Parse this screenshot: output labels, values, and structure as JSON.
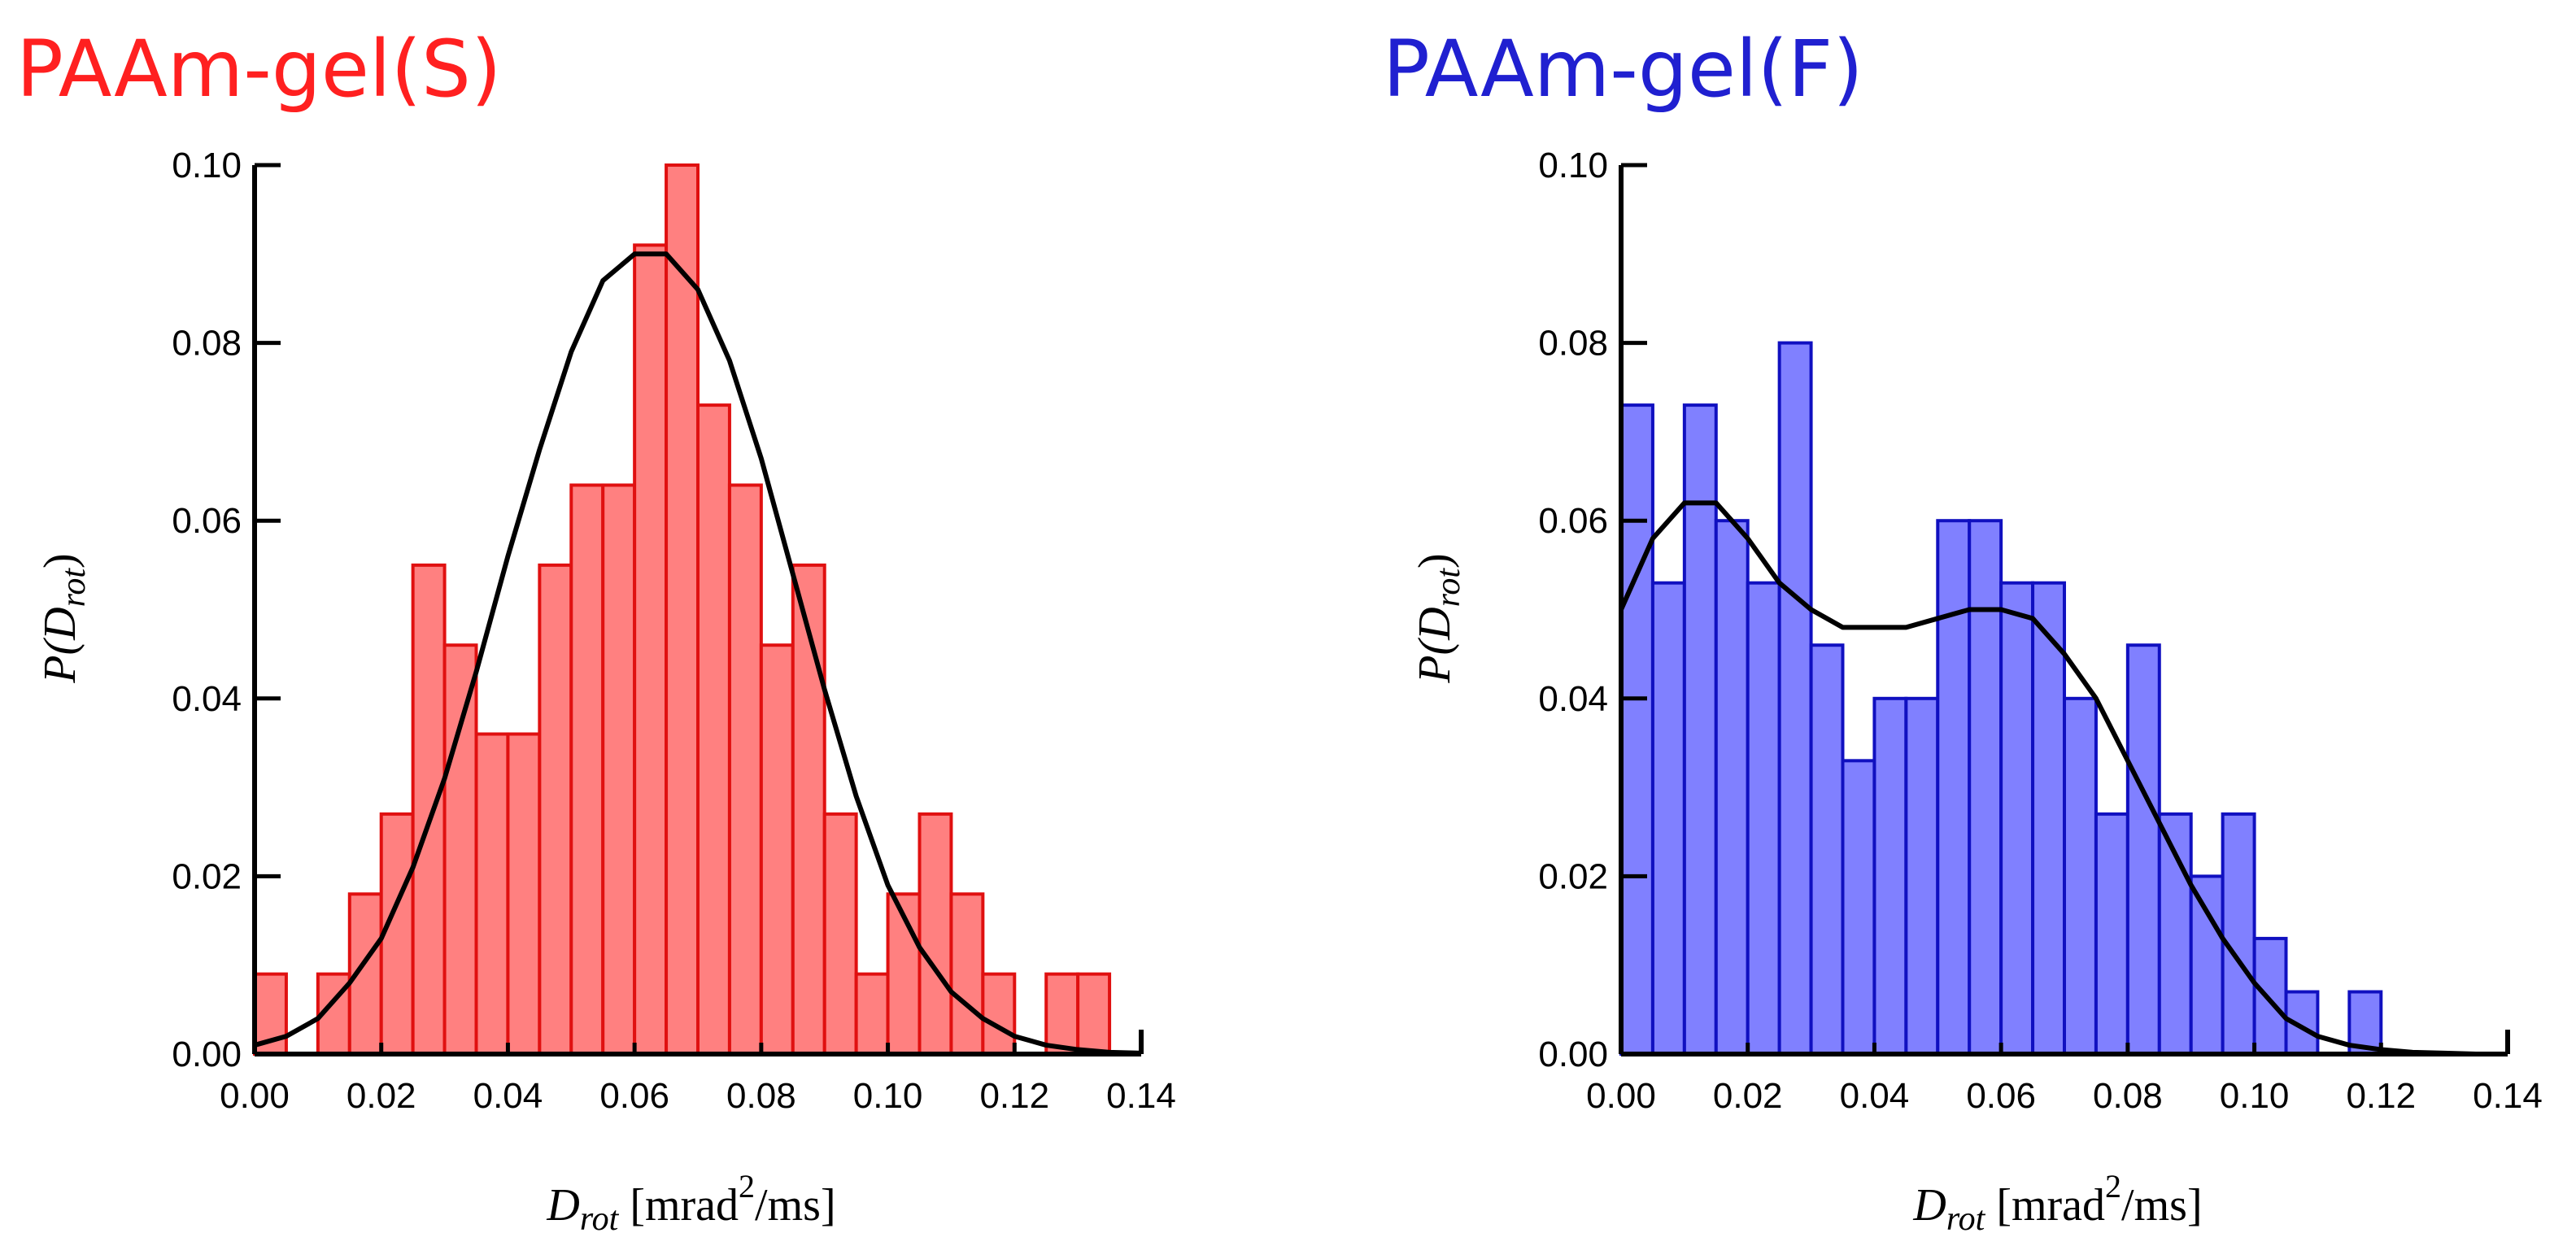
{
  "chart_data": [
    {
      "type": "bar",
      "title": "PAAm-gel(S)",
      "title_color": "#ff2020",
      "bar_fill": "#ff8080",
      "bar_stroke": "#e01010",
      "bin_width": 0.005,
      "x": [
        0.0025,
        0.0075,
        0.0125,
        0.0175,
        0.0225,
        0.0275,
        0.0325,
        0.0375,
        0.0425,
        0.0475,
        0.0525,
        0.0575,
        0.0625,
        0.0675,
        0.0725,
        0.0775,
        0.0825,
        0.0875,
        0.0925,
        0.0975,
        0.1025,
        0.1075,
        0.1125,
        0.1175,
        0.1225,
        0.1275,
        0.1325
      ],
      "values": [
        0.009,
        0.0,
        0.009,
        0.018,
        0.027,
        0.055,
        0.046,
        0.036,
        0.036,
        0.055,
        0.064,
        0.064,
        0.091,
        0.1,
        0.073,
        0.064,
        0.046,
        0.055,
        0.027,
        0.009,
        0.018,
        0.027,
        0.018,
        0.009,
        0.0,
        0.009,
        0.009
      ],
      "fit_curve": {
        "x": [
          0.0,
          0.005,
          0.01,
          0.015,
          0.02,
          0.025,
          0.03,
          0.035,
          0.04,
          0.045,
          0.05,
          0.055,
          0.06,
          0.065,
          0.07,
          0.075,
          0.08,
          0.085,
          0.09,
          0.095,
          0.1,
          0.105,
          0.11,
          0.115,
          0.12,
          0.125,
          0.13,
          0.135,
          0.14
        ],
        "y": [
          0.001,
          0.002,
          0.004,
          0.008,
          0.013,
          0.021,
          0.031,
          0.043,
          0.056,
          0.068,
          0.079,
          0.087,
          0.09,
          0.09,
          0.086,
          0.078,
          0.067,
          0.054,
          0.041,
          0.029,
          0.019,
          0.012,
          0.007,
          0.004,
          0.002,
          0.001,
          0.0005,
          0.0002,
          0.0001
        ]
      },
      "xlabel_main": "D",
      "xlabel_sub": "rot",
      "xlabel_unit_a": " [mrad",
      "xlabel_sup": "2",
      "xlabel_unit_b": "/ms]",
      "ylabel_a": "P(D",
      "ylabel_sub": "rot",
      "ylabel_b": ")",
      "xlim": [
        0,
        0.14
      ],
      "ylim": [
        0,
        0.1
      ],
      "xticks": [
        "0.00",
        "0.02",
        "0.04",
        "0.06",
        "0.08",
        "0.10",
        "0.12",
        "0.14"
      ],
      "yticks": [
        "0.00",
        "0.02",
        "0.04",
        "0.06",
        "0.08",
        "0.10"
      ]
    },
    {
      "type": "bar",
      "title": "PAAm-gel(F)",
      "title_color": "#2020d0",
      "bar_fill": "#8080ff",
      "bar_stroke": "#1010c0",
      "bin_width": 0.005,
      "x": [
        0.0025,
        0.0075,
        0.0125,
        0.0175,
        0.0225,
        0.0275,
        0.0325,
        0.0375,
        0.0425,
        0.0475,
        0.0525,
        0.0575,
        0.0625,
        0.0675,
        0.0725,
        0.0775,
        0.0825,
        0.0875,
        0.0925,
        0.0975,
        0.1025,
        0.1075,
        0.1125,
        0.1175
      ],
      "values": [
        0.073,
        0.053,
        0.073,
        0.06,
        0.053,
        0.08,
        0.046,
        0.033,
        0.04,
        0.04,
        0.06,
        0.06,
        0.053,
        0.053,
        0.04,
        0.027,
        0.046,
        0.027,
        0.02,
        0.027,
        0.013,
        0.007,
        0.0,
        0.007
      ],
      "fit_curve": {
        "x": [
          0.0,
          0.005,
          0.01,
          0.015,
          0.02,
          0.025,
          0.03,
          0.035,
          0.04,
          0.045,
          0.05,
          0.055,
          0.06,
          0.065,
          0.07,
          0.075,
          0.08,
          0.085,
          0.09,
          0.095,
          0.1,
          0.105,
          0.11,
          0.115,
          0.12,
          0.125,
          0.13,
          0.135,
          0.14
        ],
        "y": [
          0.05,
          0.058,
          0.062,
          0.062,
          0.058,
          0.053,
          0.05,
          0.048,
          0.048,
          0.048,
          0.049,
          0.05,
          0.05,
          0.049,
          0.045,
          0.04,
          0.033,
          0.026,
          0.019,
          0.013,
          0.008,
          0.004,
          0.002,
          0.001,
          0.0005,
          0.0002,
          0.0001,
          0.0,
          0.0
        ]
      },
      "xlabel_main": "D",
      "xlabel_sub": "rot",
      "xlabel_unit_a": " [mrad",
      "xlabel_sup": "2",
      "xlabel_unit_b": "/ms]",
      "ylabel_a": "P(D",
      "ylabel_sub": "rot",
      "ylabel_b": ")",
      "xlim": [
        0,
        0.14
      ],
      "ylim": [
        0,
        0.1
      ],
      "xticks": [
        "0.00",
        "0.02",
        "0.04",
        "0.06",
        "0.08",
        "0.10",
        "0.12",
        "0.14"
      ],
      "yticks": [
        "0.00",
        "0.02",
        "0.04",
        "0.06",
        "0.08",
        "0.10"
      ]
    }
  ]
}
